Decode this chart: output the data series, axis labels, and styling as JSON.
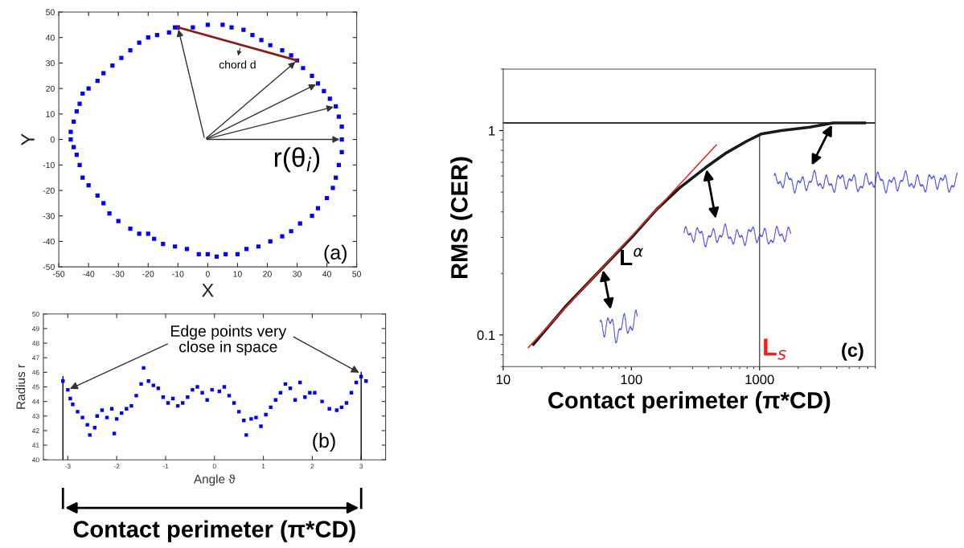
{
  "chart_data": [
    {
      "type": "scatter",
      "xlabel": "X",
      "ylabel": "Y",
      "xlim": [
        -50,
        50
      ],
      "ylim": [
        -50,
        50
      ],
      "xticks": [
        -50,
        -40,
        -30,
        -20,
        -10,
        0,
        10,
        20,
        30,
        40,
        50
      ],
      "yticks": [
        -50,
        -40,
        -30,
        -20,
        -10,
        0,
        10,
        20,
        30,
        40,
        50
      ],
      "marker": "square",
      "x": [
        -10,
        -5,
        0,
        5,
        8,
        12,
        15,
        18,
        21,
        25,
        28,
        30,
        32,
        35,
        37,
        39,
        41,
        43,
        44,
        45,
        45,
        45,
        44,
        43,
        42,
        40,
        37,
        35,
        31,
        28,
        25,
        21,
        17,
        13,
        10,
        6,
        3,
        0,
        -3,
        -7,
        -11,
        -15,
        -18,
        -20,
        -23,
        -26,
        -30,
        -33,
        -35,
        -37,
        -40,
        -42,
        -43,
        -44,
        -45,
        -46,
        -46,
        -45,
        -44,
        -43,
        -42,
        -40,
        -37,
        -35,
        -32,
        -29,
        -26,
        -23,
        -20,
        -17,
        -13,
        -11
      ],
      "series": [
        {
          "color": "#0000ff",
          "values": [
            44,
            44,
            45,
            45,
            44,
            43,
            41,
            39,
            37,
            35,
            33,
            31,
            28,
            25,
            22,
            19,
            16,
            13,
            9,
            5,
            0,
            -5,
            -10,
            -15,
            -19,
            -23,
            -27,
            -30,
            -33,
            -36,
            -38,
            -40,
            -42,
            -43,
            -45,
            -45,
            -46,
            -45,
            -45,
            -43,
            -42,
            -41,
            -39,
            -37,
            -37,
            -35,
            -32,
            -29,
            -25,
            -22,
            -18,
            -15,
            -10,
            -6,
            -3,
            0,
            3,
            7,
            11,
            14,
            18,
            20,
            23,
            26,
            29,
            32,
            35,
            38,
            40,
            41,
            42,
            44
          ]
        }
      ],
      "annotations": [
        "chord d",
        "r(θ$_{i}$)",
        "(a)"
      ]
    },
    {
      "type": "scatter",
      "xlabel": "Angle ϑ",
      "ylabel": "Radius r",
      "xlim": [
        -3.5,
        3.5
      ],
      "ylim": [
        40,
        50
      ],
      "xticks": [
        -3,
        -2,
        -1,
        0,
        1,
        2,
        3
      ],
      "yticks": [
        40,
        41,
        42,
        43,
        44,
        45,
        46,
        47,
        48,
        49,
        50
      ],
      "marker": "square",
      "x": [
        -3.1,
        -3.0,
        -2.95,
        -2.9,
        -2.8,
        -2.7,
        -2.6,
        -2.55,
        -2.45,
        -2.4,
        -2.3,
        -2.2,
        -2.1,
        -2.05,
        -2.0,
        -1.9,
        -1.8,
        -1.7,
        -1.6,
        -1.5,
        -1.45,
        -1.35,
        -1.25,
        -1.15,
        -1.05,
        -0.95,
        -0.85,
        -0.75,
        -0.65,
        -0.55,
        -0.45,
        -0.35,
        -0.25,
        -0.15,
        -0.05,
        0.1,
        0.2,
        0.3,
        0.4,
        0.5,
        0.6,
        0.65,
        0.75,
        0.85,
        0.95,
        1.05,
        1.15,
        1.25,
        1.35,
        1.45,
        1.55,
        1.65,
        1.75,
        1.85,
        1.95,
        2.05,
        2.2,
        2.35,
        2.5,
        2.6,
        2.7,
        2.8,
        2.9,
        3.0,
        3.1
      ],
      "series": [
        {
          "color": "#0000ff",
          "values": [
            45.4,
            44.8,
            44.2,
            43.8,
            43.3,
            42.9,
            42.4,
            41.7,
            42.2,
            43.0,
            43.4,
            42.9,
            43.5,
            41.8,
            42.8,
            43.2,
            43.5,
            43.7,
            44.4,
            45.2,
            46.3,
            45.4,
            45.1,
            44.9,
            44.3,
            43.9,
            44.2,
            43.7,
            43.9,
            44.3,
            44.8,
            45.0,
            44.6,
            44.1,
            44.8,
            44.7,
            45.0,
            44.4,
            43.9,
            43.3,
            42.7,
            41.7,
            42.8,
            42.9,
            42.3,
            43.1,
            43.6,
            44.1,
            44.6,
            45.2,
            44.9,
            44.1,
            45.3,
            44.3,
            44.6,
            44.6,
            44.0,
            43.5,
            43.4,
            43.6,
            43.9,
            44.6,
            45.3,
            45.7,
            45.4
          ]
        }
      ],
      "ref_lines": [
        {
          "axis": "x",
          "value": -3.1,
          "color": "#000000"
        },
        {
          "axis": "x",
          "value": 3.0,
          "color": "#000000"
        }
      ],
      "annotations": [
        {
          "text": "Edge points very\nclose in space",
          "x": -3.0,
          "y": 44.8
        },
        "(b)",
        "Contact perimeter (π*CD)"
      ]
    },
    {
      "type": "line",
      "xlabel": "Contact perimeter (π*CD)",
      "ylabel": "RMS (CER)",
      "log": "xy",
      "xlim": [
        10,
        8000
      ],
      "ylim": [
        0.07,
        2
      ],
      "xticks": [
        10,
        100,
        1000
      ],
      "yticks": [
        0.1,
        1
      ],
      "series": [
        {
          "color": "#1a1a1a",
          "x": [
            17.2,
            30.4,
            59.6,
            100,
            159,
            241,
            383,
            552,
            793,
            1026,
            1475,
            2473,
            3741,
            6600
          ],
          "values": [
            0.09,
            0.137,
            0.213,
            0.299,
            0.414,
            0.528,
            0.662,
            0.779,
            0.887,
            0.962,
            1.0,
            1.04,
            1.09,
            1.09
          ]
        },
        {
          "color": "#e8261c",
          "x": [
            15.7,
            460
          ],
          "values": [
            0.0867,
            0.851
          ]
        }
      ],
      "ref_lines": [
        {
          "axis": "y",
          "value": 1.09,
          "color": "#333333"
        },
        {
          "axis": "x",
          "value": 1000,
          "label": "L$_{s}$",
          "color": "#555555"
        }
      ],
      "annotations": [
        "L$^{α}$",
        "(c)"
      ]
    }
  ]
}
